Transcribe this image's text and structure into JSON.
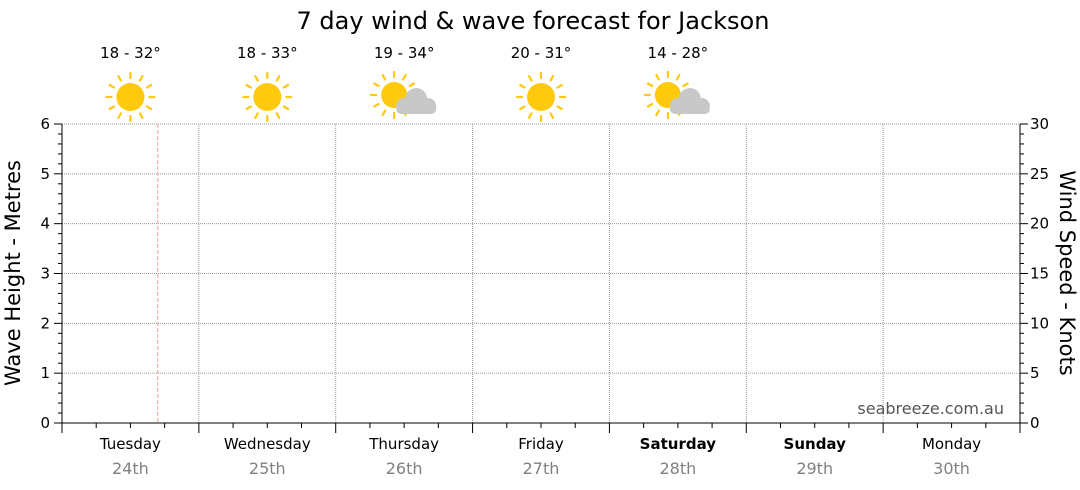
{
  "chart_data": {
    "type": "line",
    "title": "7 day wind & wave forecast for Jackson",
    "ylabel_left": "Wave Height - Metres",
    "ylabel_right": "Wind Speed - Knots",
    "ylim_left": [
      0,
      6
    ],
    "ylim_right": [
      0,
      30
    ],
    "yticks_left": [
      "0",
      "1",
      "2",
      "3",
      "4",
      "5",
      "6"
    ],
    "yticks_right": [
      "0",
      "5",
      "10",
      "15",
      "20",
      "25",
      "30"
    ],
    "grid": true,
    "days": [
      {
        "day": "Tuesday",
        "date": "24th",
        "temp": "18 - 32°",
        "weather": "sunny-icon",
        "bold": false
      },
      {
        "day": "Wednesday",
        "date": "25th",
        "temp": "18 - 33°",
        "weather": "sunny-icon",
        "bold": false
      },
      {
        "day": "Thursday",
        "date": "26th",
        "temp": "19 - 34°",
        "weather": "partly-cloudy-icon",
        "bold": false
      },
      {
        "day": "Friday",
        "date": "27th",
        "temp": "20 - 31°",
        "weather": "sunny-icon",
        "bold": false
      },
      {
        "day": "Saturday",
        "date": "28th",
        "temp": "14 - 28°",
        "weather": "partly-cloudy-icon",
        "bold": true
      },
      {
        "day": "Sunday",
        "date": "29th",
        "temp": "",
        "weather": "",
        "bold": true
      },
      {
        "day": "Monday",
        "date": "30th",
        "temp": "",
        "weather": "",
        "bold": false
      }
    ],
    "now_marker": {
      "day_index": 0,
      "fraction_of_day": 0.7
    },
    "series": [],
    "watermark": "seabreeze.com.au"
  },
  "colors": {
    "sun": "#FFC90E",
    "cloud": "#C8C8C8",
    "grid": "#9a9a9a",
    "now_marker": "#F2A0A0",
    "date_text": "#808080"
  }
}
